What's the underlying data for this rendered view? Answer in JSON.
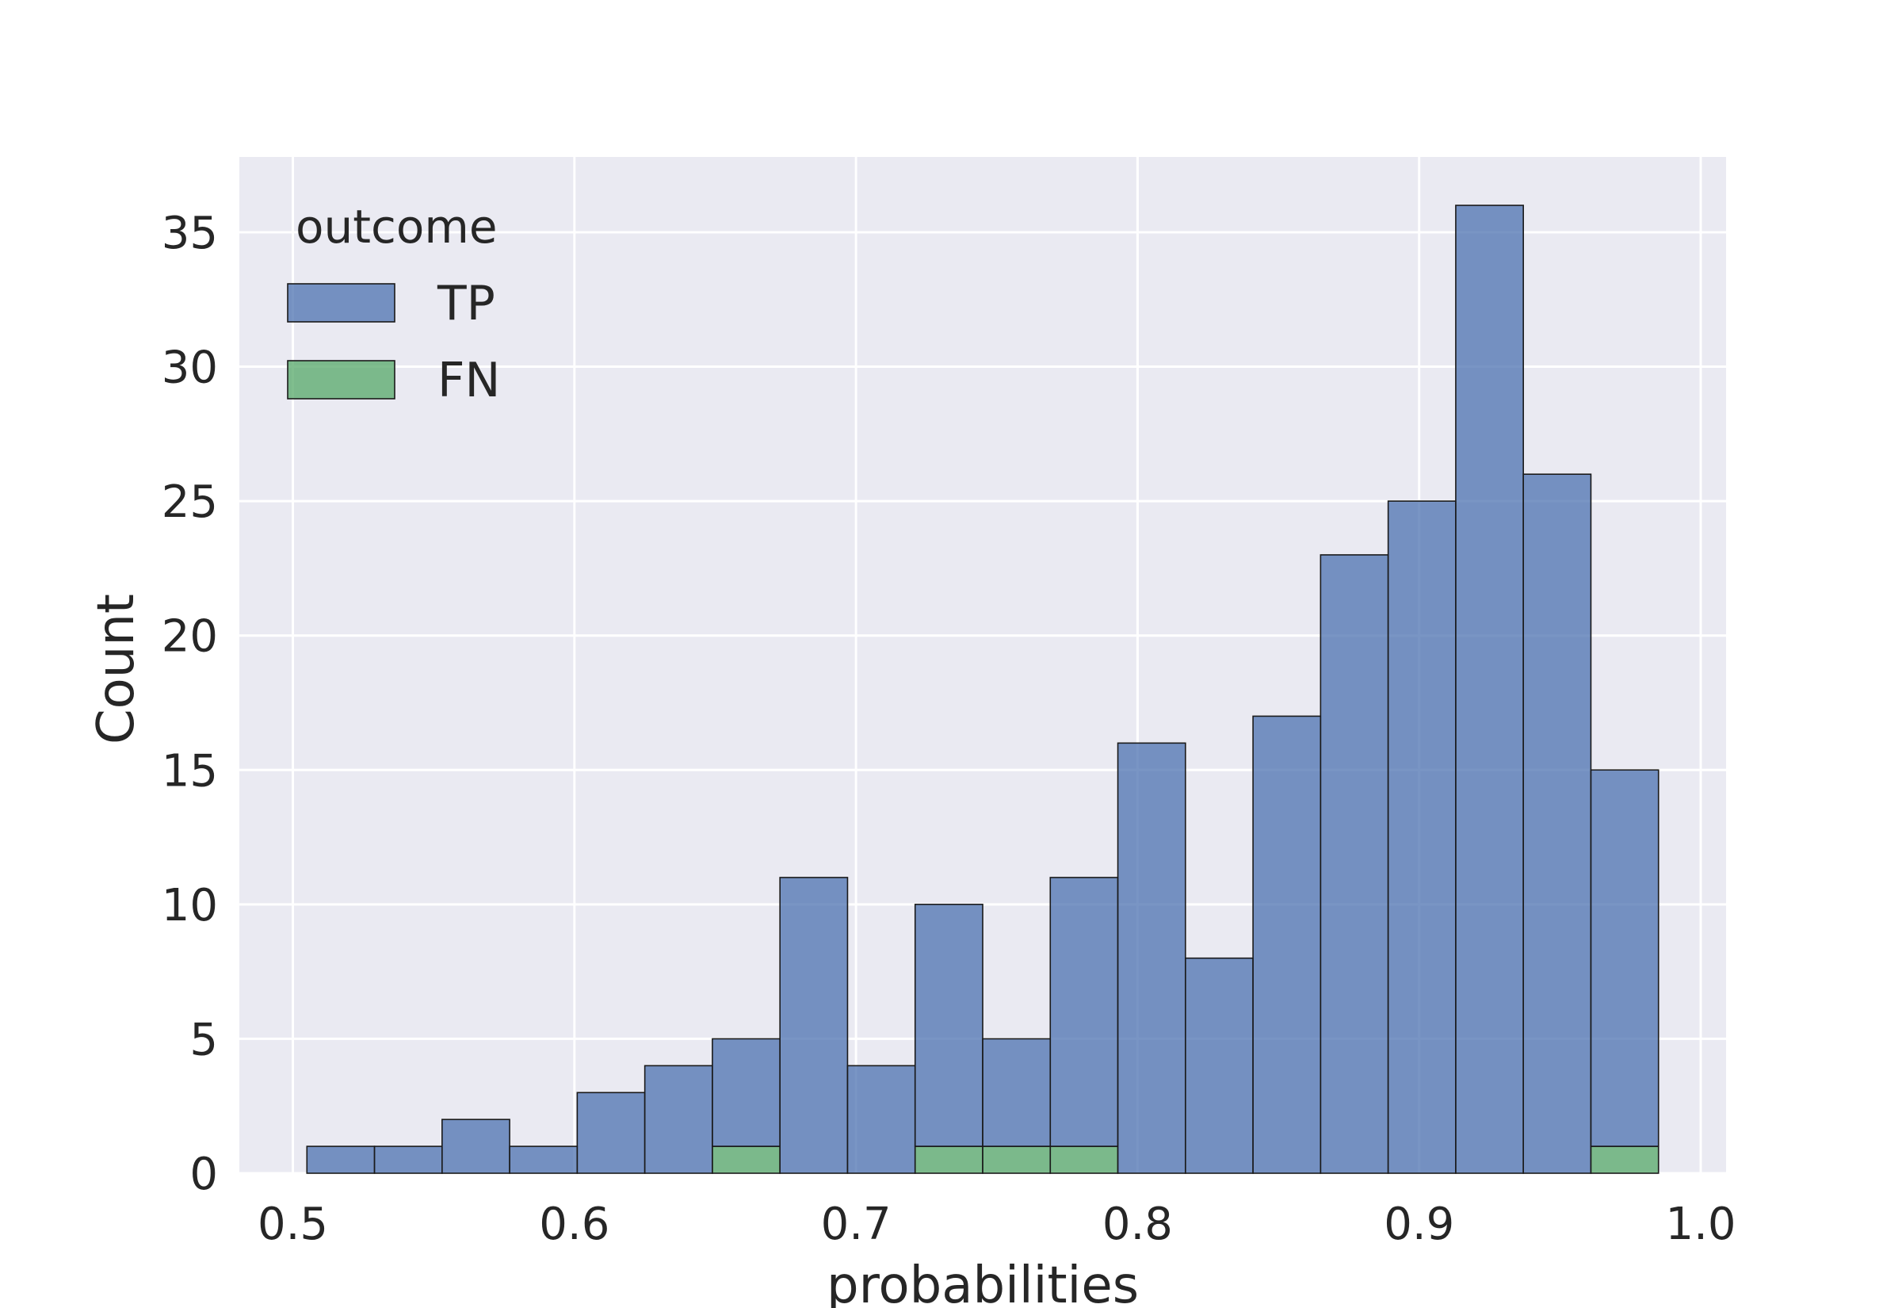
{
  "chart_data": {
    "type": "bar",
    "variant": "stacked-histogram",
    "title": "",
    "xlabel": "probabilities",
    "ylabel": "Count",
    "xlim": [
      0.481,
      1.009
    ],
    "ylim": [
      0,
      37.8
    ],
    "x_ticks": [
      "0.5",
      "0.6",
      "0.7",
      "0.8",
      "0.9",
      "1.0"
    ],
    "x_tick_values": [
      0.5,
      0.6,
      0.7,
      0.8,
      0.9,
      1.0
    ],
    "y_ticks": [
      "0",
      "5",
      "10",
      "15",
      "20",
      "25",
      "30",
      "35"
    ],
    "y_tick_values": [
      0,
      5,
      10,
      15,
      20,
      25,
      30,
      35
    ],
    "grid": true,
    "legend": {
      "title": "outcome",
      "placement": "top-left"
    },
    "bin_edges": [
      0.505,
      0.529,
      0.553,
      0.577,
      0.601,
      0.625,
      0.649,
      0.673,
      0.697,
      0.721,
      0.745,
      0.769,
      0.793,
      0.817,
      0.841,
      0.865,
      0.889,
      0.913,
      0.937,
      0.961,
      0.985
    ],
    "series": [
      {
        "name": "FN",
        "color": "#55a868",
        "values": [
          0,
          0,
          0,
          0,
          0,
          0,
          1,
          0,
          0,
          1,
          1,
          1,
          0,
          0,
          0,
          0,
          0,
          0,
          0,
          1
        ]
      },
      {
        "name": "TP",
        "color": "#4c72b0",
        "values": [
          1,
          1,
          2,
          1,
          3,
          4,
          4,
          11,
          4,
          9,
          4,
          10,
          16,
          8,
          17,
          23,
          25,
          36,
          26,
          14
        ]
      }
    ]
  },
  "style": {
    "plot_background": "#eaeaf2",
    "grid_color": "#ffffff",
    "bar_edge": "#1a1a1a",
    "text_color": "#262626"
  }
}
